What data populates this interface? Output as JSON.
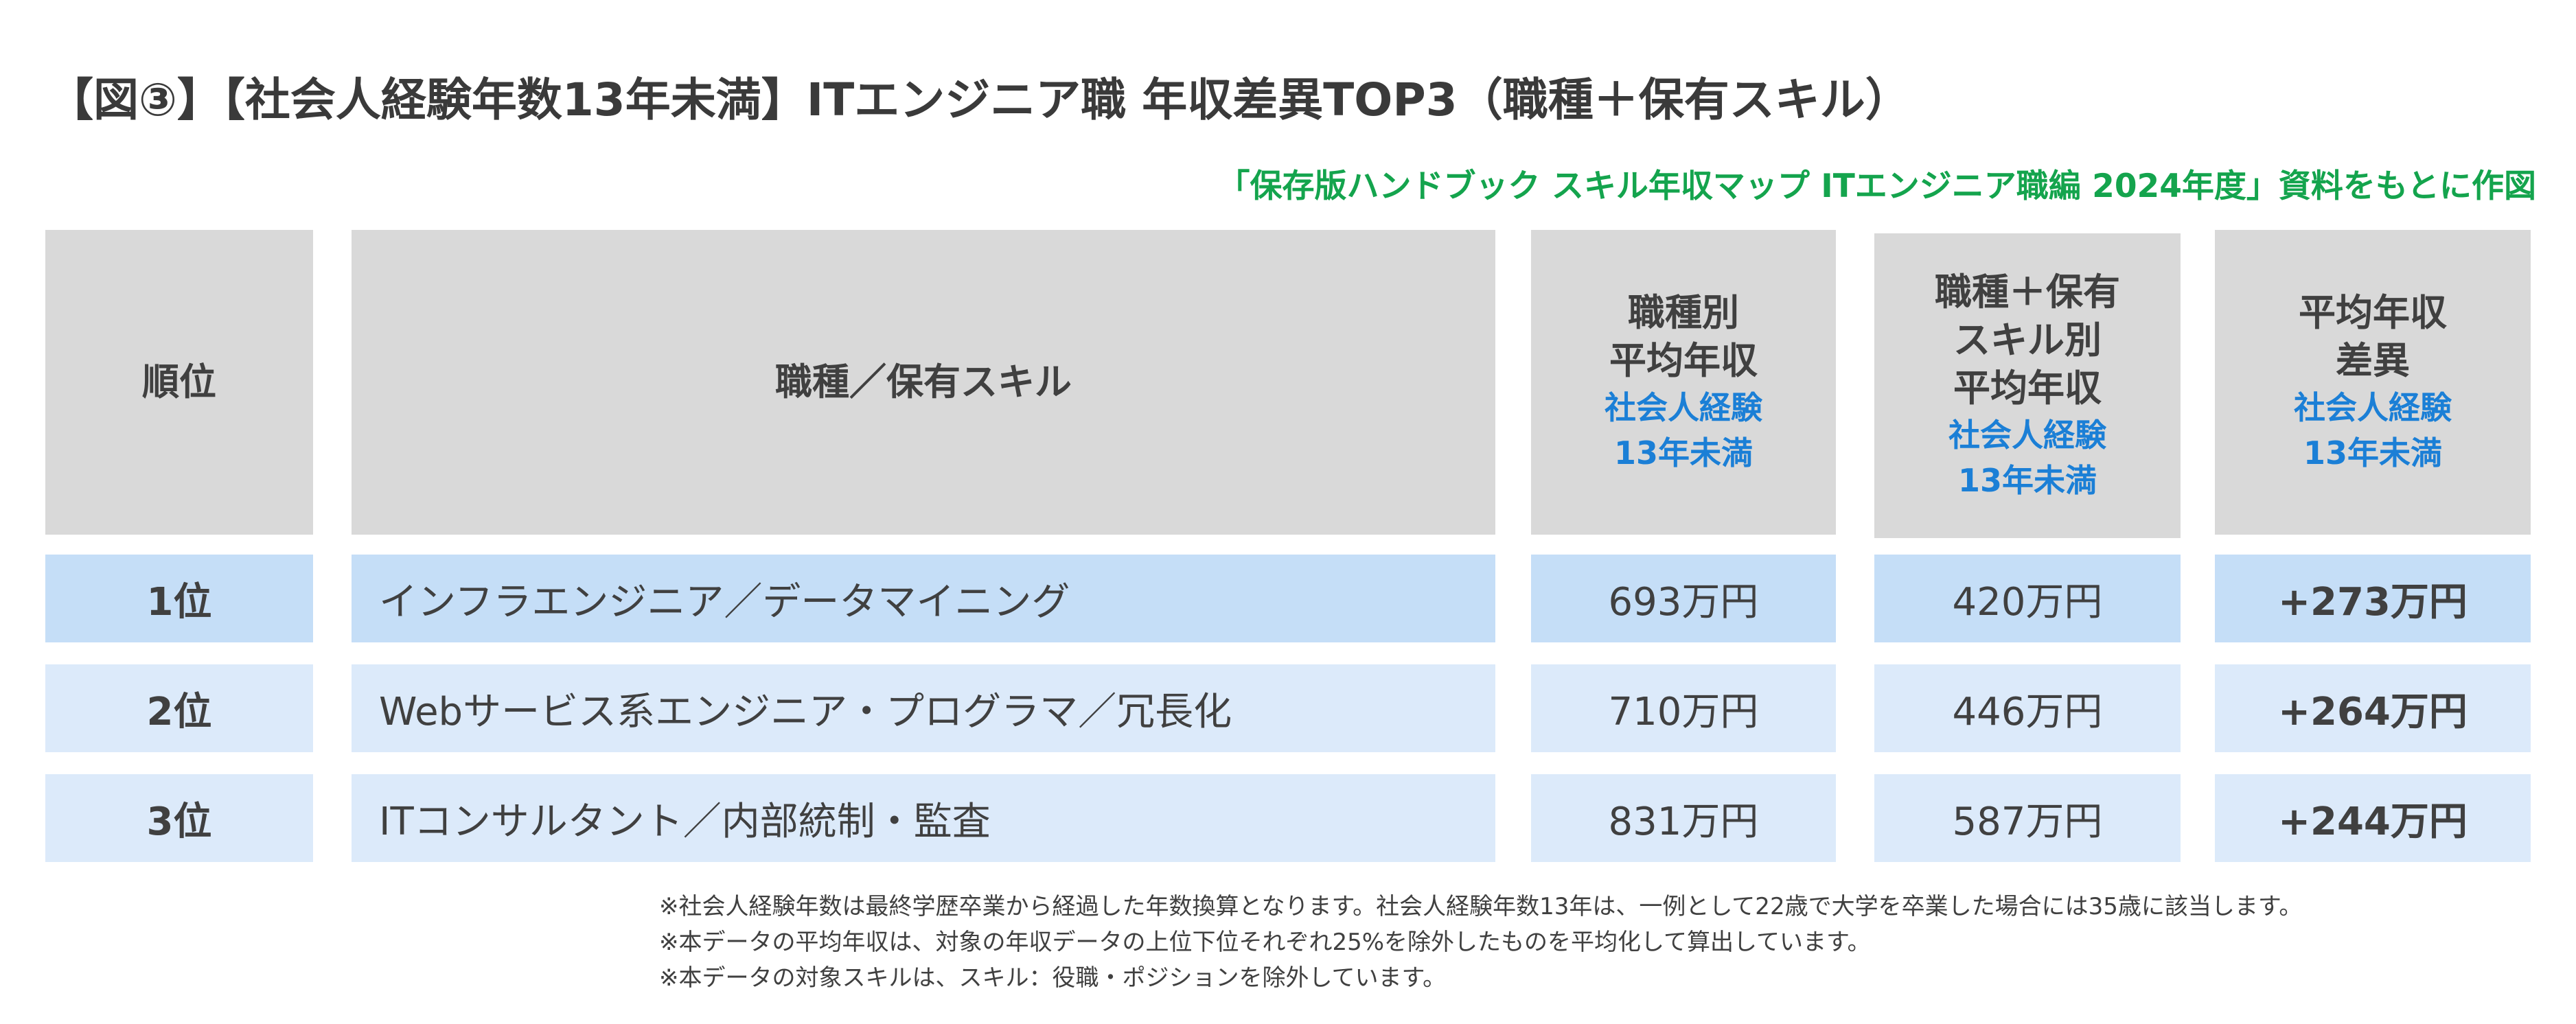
{
  "title": "【図③】【社会人経験年数13年未満】ITエンジニア職 年収差異TOP3（職種＋保有スキル）",
  "source": "「保存版ハンドブック スキル年収マップ ITエンジニア職編 2024年度」資料をもとに作図",
  "headers": {
    "rank": "順位",
    "job": "職種／保有スキル",
    "job_avg": [
      "職種別",
      "平均年収"
    ],
    "job_avg_sub": [
      "社会人経験",
      "13年未満"
    ],
    "skill_avg": [
      "職種＋保有",
      "スキル別",
      "平均年収"
    ],
    "skill_avg_sub": [
      "社会人経験",
      "13年未満"
    ],
    "diff": [
      "平均年収",
      "差異"
    ],
    "diff_sub": [
      "社会人経験",
      "13年未満"
    ]
  },
  "rows": [
    {
      "rank": "1位",
      "job": "インフラエンジニア／データマイニング",
      "job_avg": "693万円",
      "skill_avg": "420万円",
      "diff": "+273万円"
    },
    {
      "rank": "2位",
      "job": "Webサービス系エンジニア・プログラマ／冗長化",
      "job_avg": "710万円",
      "skill_avg": "446万円",
      "diff": "+264万円"
    },
    {
      "rank": "3位",
      "job": "ITコンサルタント／内部統制・監査",
      "job_avg": "831万円",
      "skill_avg": "587万円",
      "diff": "+244万円"
    }
  ],
  "notes": [
    "※社会人経験年数は最終学歴卒業から経過した年数換算となります。社会人経験年数13年は、一例として22歳で大学を卒業した場合には35歳に該当します。",
    "※本データの平均年収は、対象の年収データの上位下位それぞれ25%を除外したものを平均化して算出しています。",
    "※本データの対象スキルは、スキル：役職・ポジションを除外しています。"
  ],
  "chart_data": {
    "type": "table",
    "title": "【図③】【社会人経験年数13年未満】ITエンジニア職 年収差異TOP3（職種＋保有スキル）",
    "columns": [
      "順位",
      "職種／保有スキル",
      "職種別平均年収",
      "職種＋保有スキル別平均年収",
      "平均年収差異"
    ],
    "unit": "万円",
    "categories": [
      "インフラエンジニア／データマイニング",
      "Webサービス系エンジニア・プログラマ／冗長化",
      "ITコンサルタント／内部統制・監査"
    ],
    "series": [
      {
        "name": "職種別平均年収",
        "values": [
          693,
          710,
          831
        ]
      },
      {
        "name": "職種＋保有スキル別平均年収",
        "values": [
          420,
          446,
          587
        ]
      },
      {
        "name": "平均年収差異",
        "values": [
          273,
          264,
          244
        ]
      }
    ]
  }
}
